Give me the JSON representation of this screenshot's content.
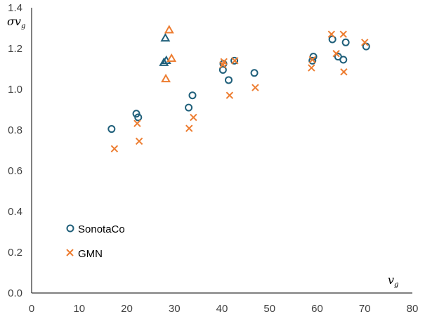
{
  "chart_data": {
    "type": "scatter",
    "xlabel": "v",
    "xlabel_sub": "g",
    "ylabel": "σv",
    "ylabel_sub": "g",
    "xlim": [
      0,
      80
    ],
    "ylim": [
      0,
      1.4
    ],
    "xticks": [
      "0",
      "10",
      "20",
      "30",
      "40",
      "50",
      "60",
      "70",
      "80"
    ],
    "yticks": [
      "0.0",
      "0.2",
      "0.4",
      "0.6",
      "0.8",
      "1.0",
      "1.2",
      "1.4"
    ],
    "grid": false,
    "legend_position": "bottom-left",
    "series": [
      {
        "name": "SonotaCo",
        "marker": "circle",
        "color": "#1f5f7a",
        "points": [
          [
            16.8,
            0.805
          ],
          [
            22.0,
            0.88
          ],
          [
            22.4,
            0.862
          ],
          [
            33.0,
            0.91
          ],
          [
            33.8,
            0.97
          ],
          [
            40.2,
            1.095
          ],
          [
            40.3,
            1.125
          ],
          [
            41.4,
            1.045
          ],
          [
            42.6,
            1.14
          ],
          [
            46.8,
            1.08
          ],
          [
            59.0,
            1.14
          ],
          [
            59.2,
            1.16
          ],
          [
            63.2,
            1.245
          ],
          [
            64.4,
            1.16
          ],
          [
            65.5,
            1.145
          ],
          [
            66.0,
            1.23
          ],
          [
            70.3,
            1.21
          ]
        ]
      },
      {
        "name": "",
        "marker": "triangle",
        "color": "#1f5f7a",
        "points": [
          [
            27.8,
            1.13
          ],
          [
            28.1,
            1.25
          ],
          [
            28.3,
            1.14
          ]
        ]
      },
      {
        "name": "GMN",
        "marker": "x",
        "color": "#ed7d31",
        "points": [
          [
            17.4,
            0.708
          ],
          [
            22.2,
            0.832
          ],
          [
            22.6,
            0.745
          ],
          [
            33.1,
            0.808
          ],
          [
            34.0,
            0.862
          ],
          [
            40.4,
            1.135
          ],
          [
            40.2,
            1.12
          ],
          [
            41.6,
            0.97
          ],
          [
            42.7,
            1.14
          ],
          [
            47.0,
            1.008
          ],
          [
            58.8,
            1.105
          ],
          [
            59.0,
            1.145
          ],
          [
            63.0,
            1.27
          ],
          [
            64.0,
            1.175
          ],
          [
            65.5,
            1.27
          ],
          [
            65.6,
            1.085
          ],
          [
            70.0,
            1.23
          ]
        ]
      },
      {
        "name": "",
        "marker": "triangle",
        "color": "#ed7d31",
        "points": [
          [
            28.2,
            1.05
          ],
          [
            28.9,
            1.29
          ],
          [
            29.4,
            1.15
          ]
        ]
      }
    ]
  }
}
